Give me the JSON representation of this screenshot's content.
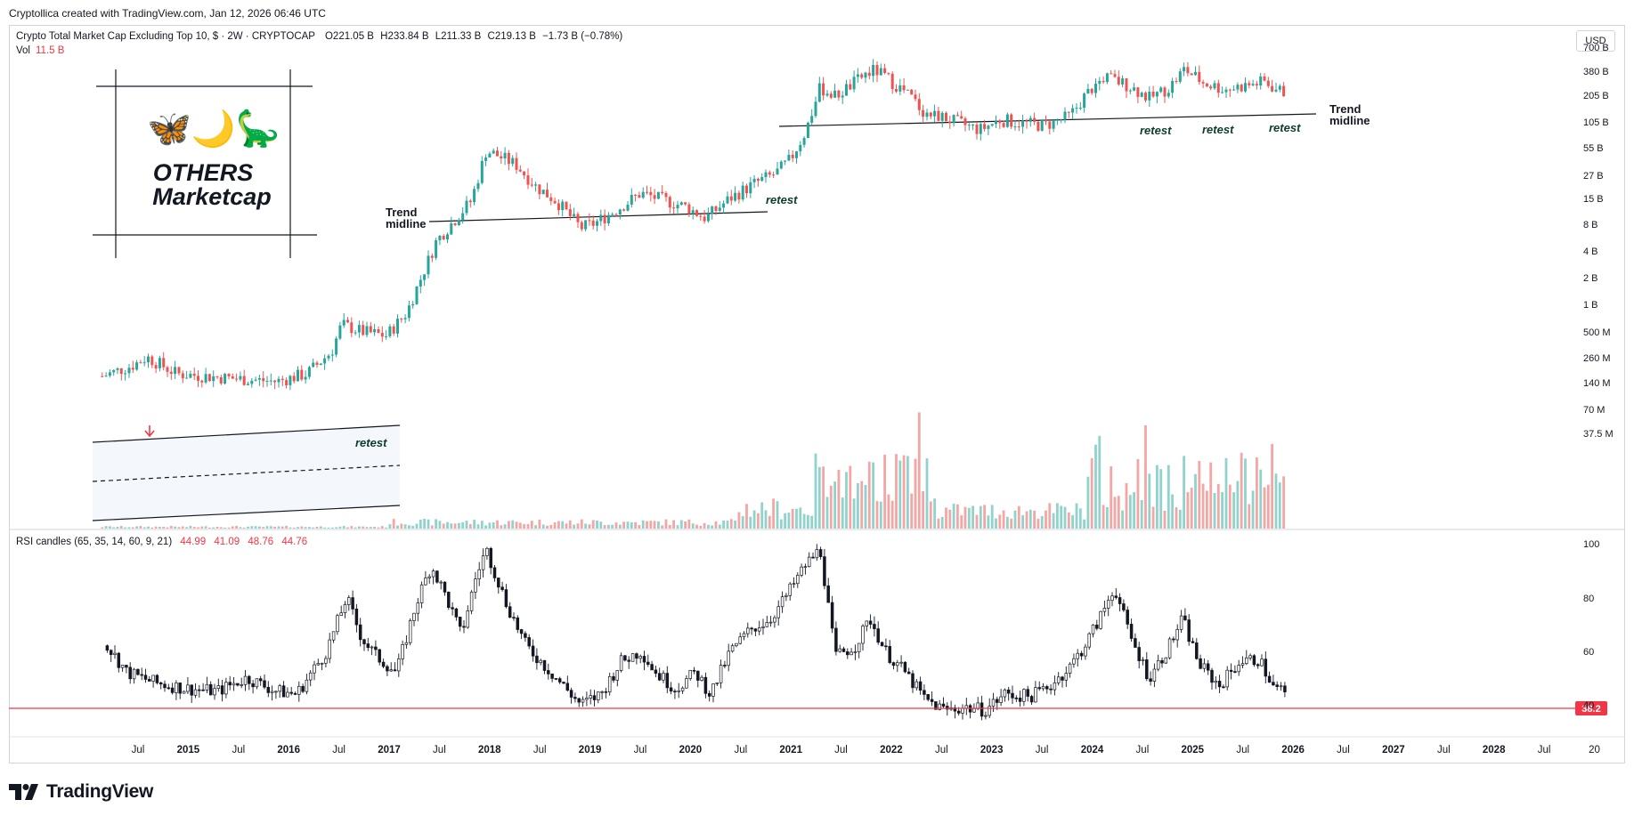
{
  "header": {
    "caption": "Cryptollica created with TradingView.com, Jan 12, 2026 06:46 UTC"
  },
  "symbol": {
    "name": "Crypto Total Market Cap Excluding Top 10, $ · 2W · CRYPTOCAP",
    "open": "O221.05 B",
    "high": "H233.84 B",
    "low": "L211.33 B",
    "close": "C219.13 B",
    "change": "−1.73 B (−0.78%)"
  },
  "volume": {
    "label": "Vol",
    "value": "11.5 B"
  },
  "currency_button": "USD",
  "rsi_header": {
    "label": "RSI candles (65, 35, 14, 60, 9, 21)",
    "values": [
      "44.99",
      "41.09",
      "48.76",
      "44.76"
    ]
  },
  "brand": {
    "name": "TradingView"
  },
  "annotations": {
    "box_title_1": "OTHERS",
    "box_title_2": "Marketcap",
    "box_emojis": "🦋🌙🦕",
    "trend_midline_left": [
      "Trend",
      "midline"
    ],
    "trend_midline_right": [
      "Trend",
      "midline"
    ],
    "retest": "retest",
    "rsi_level_label": "38.2"
  },
  "colors": {
    "up": "#26a69a",
    "down": "#ef5350",
    "vol_up": "#8fd3cc",
    "vol_down": "#f4a6a4",
    "rsi_line": "#f23645",
    "annotation_text": "#0b3d2e"
  },
  "icons": {
    "arrow": "down-arrow-icon",
    "logo": "tradingview-logo-icon"
  },
  "chart_data": [
    {
      "type": "candlestick",
      "title": "Crypto Total Market Cap Excluding Top 10",
      "scale": "log",
      "price_axis_labels": [
        "700 B",
        "380 B",
        "205 B",
        "105 B",
        "55 B",
        "27 B",
        "15 B",
        "8 B",
        "4 B",
        "2 B",
        "1 B",
        "500 M",
        "260 M",
        "140 M",
        "70 M",
        "37.5 M"
      ],
      "x_axis_labels": [
        "Jul",
        "2015",
        "Jul",
        "2016",
        "Jul",
        "2017",
        "Jul",
        "2018",
        "Jul",
        "2019",
        "Jul",
        "2020",
        "Jul",
        "2021",
        "Jul",
        "2022",
        "Jul",
        "2023",
        "Jul",
        "2024",
        "Jul",
        "2025",
        "Jul",
        "2026",
        "Jul",
        "2027",
        "Jul",
        "2028",
        "Jul",
        "20"
      ],
      "approx_close_path": [
        {
          "date": "2014-07",
          "value": "~210 M"
        },
        {
          "date": "2015-06",
          "value": "~160 M"
        },
        {
          "date": "2016-06",
          "value": "~330 M"
        },
        {
          "date": "2017-03",
          "value": "~2 B"
        },
        {
          "date": "2017-06",
          "value": "~8 B"
        },
        {
          "date": "2018-01",
          "value": "~55 B"
        },
        {
          "date": "2018-12",
          "value": "~8 B"
        },
        {
          "date": "2019-07",
          "value": "~15 B"
        },
        {
          "date": "2020-03",
          "value": "~9 B"
        },
        {
          "date": "2021-01",
          "value": "~55 B"
        },
        {
          "date": "2021-11",
          "value": "~380 B"
        },
        {
          "date": "2022-06",
          "value": "~130 B"
        },
        {
          "date": "2022-12",
          "value": "~95 B"
        },
        {
          "date": "2024-03",
          "value": "~300 B"
        },
        {
          "date": "2024-12",
          "value": "~380 B"
        },
        {
          "date": "2025-09",
          "value": "~290 B"
        },
        {
          "date": "2026-01",
          "value": "~219 B"
        }
      ]
    },
    {
      "type": "line",
      "title": "RSI candles (65, 35, 14, 60, 9, 21)",
      "y_axis_labels": [
        "100",
        "80",
        "60",
        "40"
      ],
      "horizontal_level": 38.2
    }
  ]
}
